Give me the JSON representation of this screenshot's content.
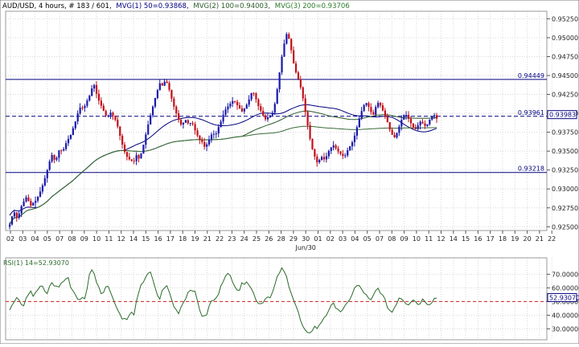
{
  "header": {
    "symbol": "AUD/USD",
    "info": ", 4 hours, # 183 / 601,",
    "mvg1": "MVG(1) 50=0.93868,",
    "mvg2": "MVG(2) 100=0.94003,",
    "mvg3": "MVG(3) 200=0.93706",
    "rsi": "RSI(1) 14=52.93070"
  },
  "colors": {
    "bull": "#1a1aaa",
    "bear": "#c0101a",
    "hline": "#000080",
    "ma_blue": "#000080",
    "ma_green": "#2a5a2a",
    "rsi": "#2a6a2a",
    "rsi_ref": "#cc2020",
    "badge": "#000080",
    "grid": "#d8d8d8"
  },
  "chart_data": [
    {
      "type": "candlestick",
      "price_axis": {
        "ylim": [
          0.9245,
          0.9535
        ],
        "ticks": [
          "0.95250",
          "0.95000",
          "0.94750",
          "0.94500",
          "0.94250",
          "0.94000",
          "0.93750",
          "0.93500",
          "0.93250",
          "0.93000",
          "0.92750",
          "0.92500"
        ]
      },
      "x_axis": {
        "ticks": [
          "02",
          "03",
          "04",
          "05",
          "07",
          "08",
          "09",
          "10",
          "11",
          "12",
          "14",
          "15",
          "16",
          "17",
          "18",
          "19",
          "21",
          "22",
          "23",
          "24",
          "25",
          "26",
          "28",
          "29",
          "30",
          "01",
          "02",
          "03",
          "04",
          "05",
          "07",
          "08",
          "09",
          "10",
          "11",
          "12",
          "14",
          "15",
          "16",
          "17",
          "18",
          "19",
          "20",
          "21",
          "22"
        ],
        "sublabel": "Jun/30",
        "candles_per_day": 6,
        "n_candles": 183
      },
      "ohlc_path": [
        [
          0.9253,
          0.9265,
          0.927,
          0.9258,
          0.9275,
          0.928,
          0.929,
          0.9285,
          0.9278,
          0.9282
        ],
        [
          0.9285,
          0.9292,
          0.93,
          0.931,
          0.9322,
          0.9335,
          0.9345,
          0.9338,
          0.9342,
          0.9355
        ],
        [
          0.9348,
          0.9358,
          0.9365,
          0.937,
          0.938,
          0.939,
          0.9402,
          0.941,
          0.9405,
          0.9415
        ],
        [
          0.942,
          0.9432,
          0.9438,
          0.9425,
          0.9415,
          0.9408,
          0.94,
          0.9394,
          0.9402,
          0.9398
        ],
        [
          0.9392,
          0.9382,
          0.9368,
          0.9355,
          0.9345,
          0.934,
          0.9338,
          0.9335,
          0.9345,
          0.934
        ],
        [
          0.9348,
          0.9362,
          0.9378,
          0.9392,
          0.9405,
          0.9418,
          0.943,
          0.944,
          0.9436,
          0.9444
        ],
        [
          0.9438,
          0.9425,
          0.9412,
          0.9402,
          0.9392,
          0.9385,
          0.9388,
          0.9392,
          0.9384,
          0.939
        ],
        [
          0.938,
          0.9372,
          0.9365,
          0.9362,
          0.9355,
          0.936,
          0.9368,
          0.9375,
          0.937,
          0.938
        ],
        [
          0.9388,
          0.9398,
          0.9406,
          0.941,
          0.9414,
          0.9418,
          0.9412,
          0.9408,
          0.9402,
          0.9406
        ],
        [
          0.9412,
          0.942,
          0.943,
          0.9424,
          0.9412,
          0.9405,
          0.9398,
          0.9392,
          0.9395,
          0.9398
        ],
        [
          0.9402,
          0.942,
          0.9445,
          0.947,
          0.949,
          0.9505,
          0.9498,
          0.948,
          0.946,
          0.945
        ],
        [
          0.944,
          0.9425,
          0.9405,
          0.9385,
          0.9365,
          0.935,
          0.934,
          0.9332,
          0.9345,
          0.9338
        ],
        [
          0.9342,
          0.935,
          0.9355,
          0.9358,
          0.9352,
          0.9348,
          0.9345,
          0.9342,
          0.935,
          0.9356
        ],
        [
          0.9362,
          0.9372,
          0.9385,
          0.9398,
          0.9408,
          0.9415,
          0.941,
          0.9402,
          0.9398,
          0.941
        ],
        [
          0.9415,
          0.9408,
          0.94,
          0.9392,
          0.938,
          0.9372,
          0.9368,
          0.9375,
          0.9385,
          0.9395
        ],
        [
          0.94,
          0.9395,
          0.9388,
          0.9382,
          0.9379,
          0.9385,
          0.939,
          0.9385,
          0.9382,
          0.939
        ],
        [
          0.9395,
          0.9398,
          0.9393
        ]
      ],
      "moving_averages": [
        {
          "name": "MVG(1) 50",
          "value": 0.93868
        },
        {
          "name": "MVG(2) 100",
          "value": 0.94003
        },
        {
          "name": "MVG(3) 200",
          "value": 0.93706
        }
      ],
      "horizontal_lines": [
        {
          "value": 0.94449,
          "label": "0.94449"
        },
        {
          "value": 0.93961,
          "label": "0.93961",
          "dashed": true
        },
        {
          "value": 0.93218,
          "label": "0.93218"
        }
      ],
      "last_price": {
        "value": 0.93983,
        "label": "0.93983"
      }
    },
    {
      "type": "line",
      "title": "RSI(1) 14=52.93070",
      "ylim": [
        22,
        82
      ],
      "y_ticks": [
        "70.00000",
        "60.00000",
        "50.00000",
        "40.00000",
        "30.00000"
      ],
      "reference_line": 50,
      "last_value": {
        "value": 52.9307,
        "label": "52.93070"
      },
      "rsi_path": [
        [
          45,
          48,
          52,
          55,
          50,
          46,
          52,
          56,
          58,
          54
        ],
        [
          56,
          60,
          62,
          58,
          55,
          60,
          64,
          62,
          60,
          62
        ],
        [
          64,
          66,
          68,
          62,
          58,
          55,
          52,
          50,
          54,
          52
        ],
        [
          70,
          74,
          70,
          65,
          60,
          55,
          60,
          62,
          58,
          55
        ],
        [
          48,
          44,
          40,
          38,
          36,
          38,
          42,
          40,
          48,
          56
        ],
        [
          62,
          66,
          70,
          72,
          68,
          60,
          55,
          52,
          58,
          62
        ],
        [
          60,
          54,
          48,
          44,
          42,
          46,
          50,
          54,
          58,
          60
        ],
        [
          58,
          52,
          45,
          40,
          38,
          42,
          48,
          52,
          50,
          55
        ],
        [
          62,
          66,
          68,
          70,
          68,
          64,
          60,
          58,
          62,
          64
        ],
        [
          66,
          62,
          58,
          54,
          50,
          48,
          50,
          52,
          55,
          52
        ],
        [
          58,
          64,
          70,
          74,
          72,
          68,
          62,
          56,
          50,
          45
        ],
        [
          38,
          32,
          28,
          26,
          28,
          30,
          32,
          30,
          34,
          38
        ],
        [
          40,
          44,
          46,
          48,
          46,
          44,
          42,
          45,
          48,
          52
        ],
        [
          56,
          60,
          62,
          60,
          58,
          55,
          52,
          50,
          54,
          58
        ],
        [
          60,
          56,
          52,
          48,
          44,
          42,
          46,
          50,
          54,
          52
        ],
        [
          50,
          48,
          50,
          52,
          50,
          48,
          50,
          52,
          50,
          48
        ],
        [
          50,
          52,
          53
        ]
      ]
    }
  ]
}
